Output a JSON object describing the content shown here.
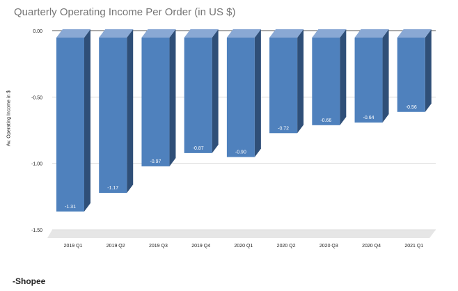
{
  "chart_data": {
    "type": "bar",
    "title": "Quarterly Operating Income Per Order (in US $)",
    "xlabel": "",
    "ylabel": "Av. Operating Income in $",
    "categories": [
      "2019 Q1",
      "2019 Q2",
      "2019 Q3",
      "2019 Q4",
      "2020 Q1",
      "2020 Q2",
      "2020 Q3",
      "2020 Q4",
      "2021 Q1"
    ],
    "values": [
      -1.31,
      -1.17,
      -0.97,
      -0.87,
      -0.9,
      -0.72,
      -0.66,
      -0.64,
      -0.56
    ],
    "data_labels": [
      "-1.31",
      "-1.17",
      "-0.97",
      "-0.87",
      "-0.90",
      "-0.72",
      "-0.66",
      "-0.64",
      "-0.56"
    ],
    "ylim": [
      -1.5,
      0
    ],
    "yticks": [
      0,
      -0.5,
      -1.0,
      -1.5
    ],
    "ytick_labels": [
      "0.00",
      "-0.50",
      "-1.00",
      "-1.50"
    ],
    "grid": true,
    "style": "3d-bar",
    "colors": {
      "bar_front": "#4f81bd",
      "bar_side": "#2f4f78",
      "bar_top": "#89a8d4",
      "floor": "#e6e6e6",
      "title": "#757575"
    }
  },
  "footer": {
    "source": "-Shopee"
  }
}
